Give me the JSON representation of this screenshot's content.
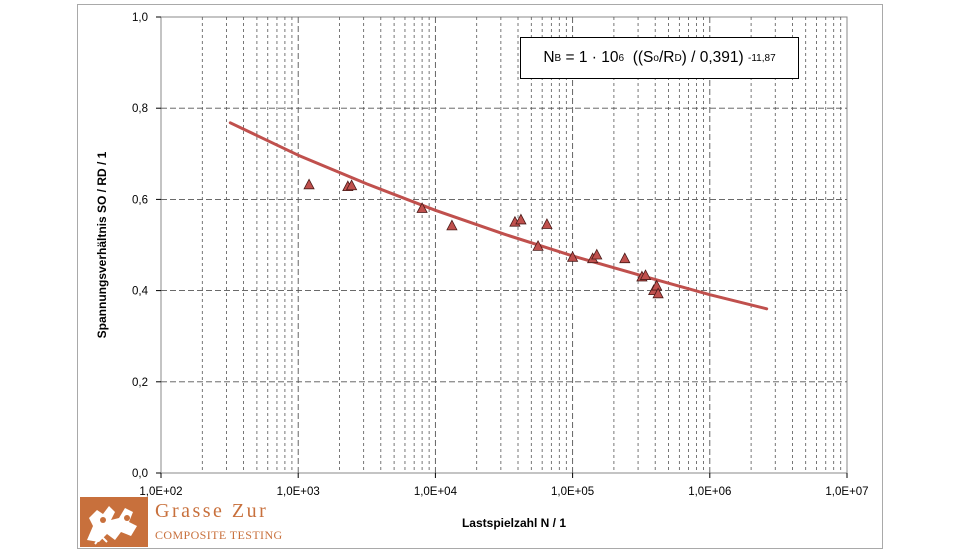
{
  "chart_data": {
    "type": "scatter",
    "xlabel": "Lastspielzahl N / 1",
    "ylabel": "Spannungsverhältnis SO / RD / 1",
    "xscale": "log",
    "xlim": [
      100,
      10000000
    ],
    "ylim": [
      0.0,
      1.0
    ],
    "x_tick_labels": [
      "1,0E+02",
      "1,0E+03",
      "1,0E+04",
      "1,0E+05",
      "1,0E+06",
      "1,0E+07"
    ],
    "y_tick_labels": [
      "0,0",
      "0,2",
      "0,4",
      "0,6",
      "0,8",
      "1,0"
    ],
    "grid": true,
    "series": [
      {
        "marker": "triangle",
        "color": "#c0504d",
        "x": [
          1200,
          2300,
          2450,
          8000,
          13200,
          38000,
          42000,
          56000,
          65000,
          100000,
          140000,
          150000,
          240000,
          320000,
          340000,
          390000,
          410000,
          420000
        ],
        "y": [
          0.632,
          0.628,
          0.63,
          0.58,
          0.542,
          0.55,
          0.555,
          0.497,
          0.545,
          0.473,
          0.47,
          0.478,
          0.47,
          0.43,
          0.433,
          0.4,
          0.41,
          0.393
        ]
      },
      {
        "type": "line",
        "color": "#c0504d",
        "fit": "N = 1e6 * ((S/R)/0.391)^-11.87",
        "x": [
          320,
          1000,
          3160,
          10000,
          31600,
          100000,
          316000,
          1000000,
          2600000
        ],
        "y": [
          0.768,
          0.697,
          0.634,
          0.576,
          0.524,
          0.476,
          0.433,
          0.391,
          0.36
        ]
      }
    ],
    "annotation": {
      "base": "N",
      "base_sub": "B",
      "eq": " = 1 · 10",
      "exp": "6",
      "mid1": "  ((S",
      "sub_o": "o",
      "mid2": "/R",
      "sub_d": "D",
      "mid3": ") / 0,391) ",
      "exp2": "-11,87"
    }
  },
  "logo": {
    "name": "Grasse Zur",
    "subtitle": "COMPOSITE TESTING",
    "color": "#c8703c"
  }
}
